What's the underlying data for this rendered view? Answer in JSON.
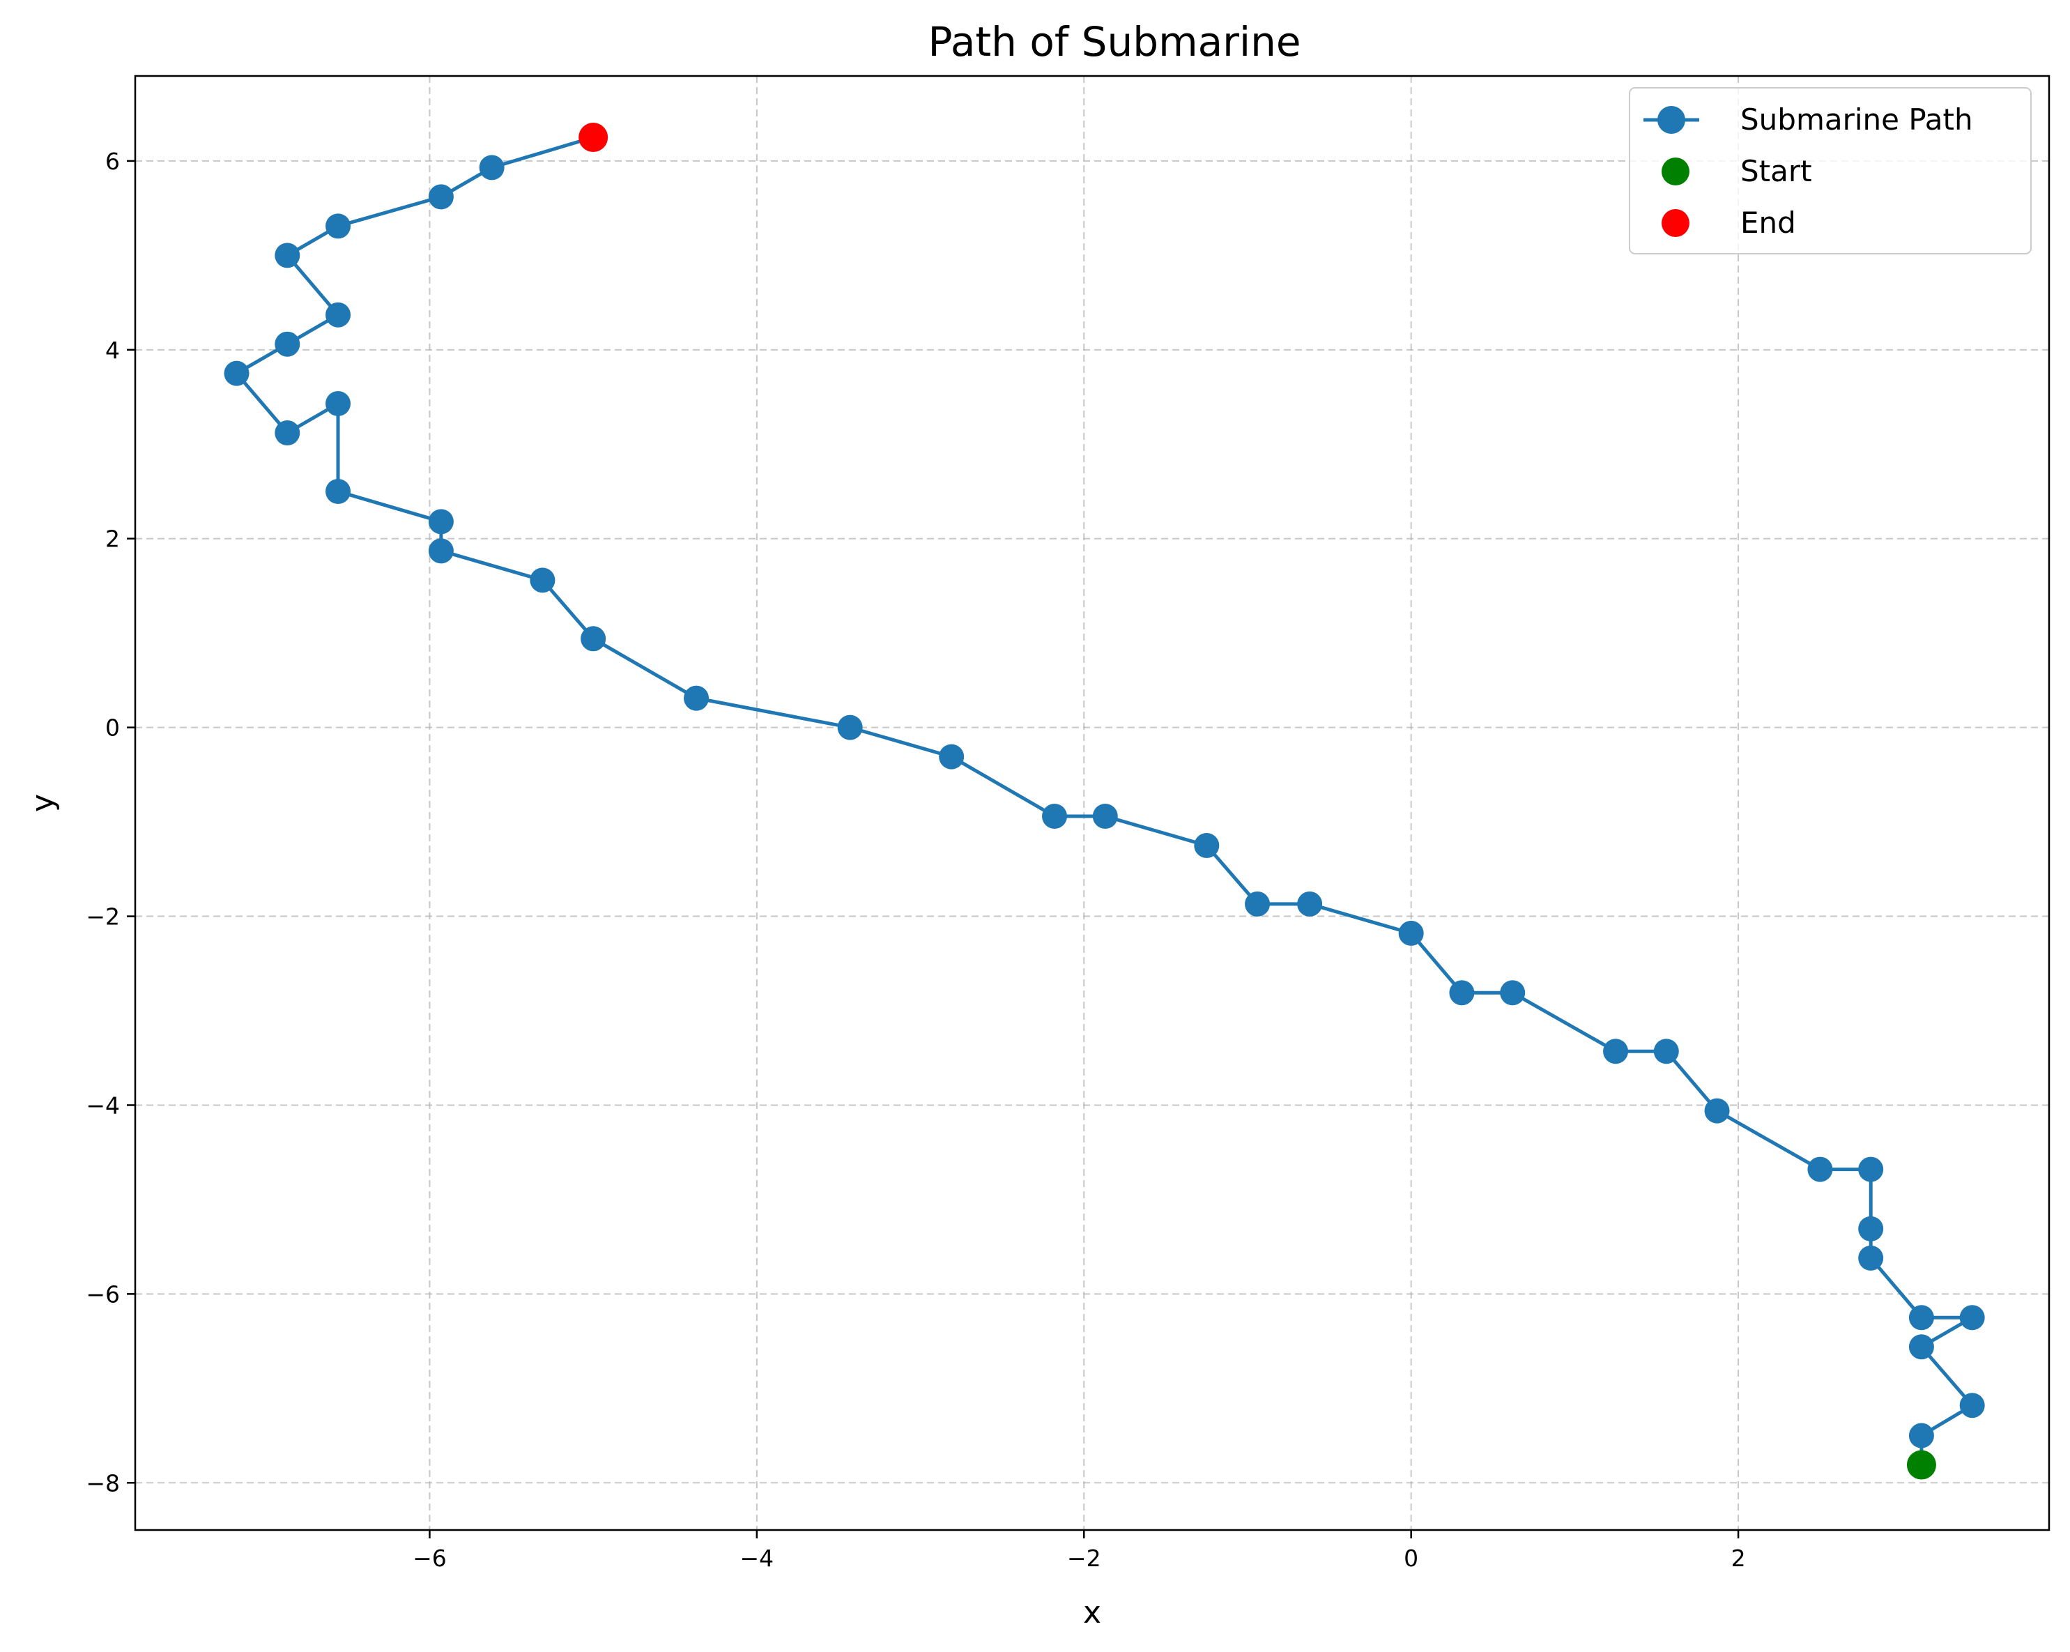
{
  "chart_data": {
    "type": "line",
    "title": "Path of Submarine",
    "xlabel": "x",
    "ylabel": "y",
    "xlim": [
      -7.8,
      3.9
    ],
    "ylim": [
      -8.5,
      6.9
    ],
    "xticks": [
      -6,
      -4,
      -2,
      0,
      2
    ],
    "yticks": [
      -8,
      -6,
      -4,
      -2,
      0,
      2,
      4,
      6
    ],
    "xtick_labels": [
      "−6",
      "−4",
      "−2",
      "0",
      "2"
    ],
    "ytick_labels": [
      "−8",
      "−6",
      "−4",
      "−2",
      "0",
      "2",
      "4",
      "6"
    ],
    "grid": true,
    "legend_position": "top-right",
    "series": [
      {
        "name": "Submarine Path",
        "color": "#1f77b4",
        "x": [
          3.12,
          3.12,
          3.43,
          3.12,
          3.43,
          3.12,
          2.81,
          2.81,
          2.81,
          2.5,
          1.87,
          1.56,
          1.25,
          0.62,
          0.31,
          0.0,
          -0.62,
          -0.94,
          -1.25,
          -1.87,
          -2.18,
          -2.81,
          -3.43,
          -4.37,
          -5.0,
          -5.31,
          -5.93,
          -5.93,
          -6.56,
          -6.56,
          -6.87,
          -7.18,
          -6.87,
          -6.56,
          -6.87,
          -6.56,
          -5.93,
          -5.62,
          -5.0
        ],
        "y": [
          -7.81,
          -7.5,
          -7.18,
          -6.56,
          -6.25,
          -6.25,
          -5.62,
          -5.31,
          -4.68,
          -4.68,
          -4.06,
          -3.43,
          -3.43,
          -2.81,
          -2.81,
          -2.18,
          -1.87,
          -1.87,
          -1.25,
          -0.94,
          -0.94,
          -0.31,
          0.0,
          0.31,
          0.94,
          1.56,
          1.87,
          2.18,
          2.5,
          3.43,
          3.12,
          3.75,
          4.06,
          4.37,
          5.0,
          5.31,
          5.62,
          5.93,
          6.25
        ]
      },
      {
        "name": "Start",
        "color": "#008000",
        "x": [
          3.12
        ],
        "y": [
          -7.81
        ]
      },
      {
        "name": "End",
        "color": "#ff0000",
        "x": [
          -5.0
        ],
        "y": [
          6.25
        ]
      }
    ]
  }
}
